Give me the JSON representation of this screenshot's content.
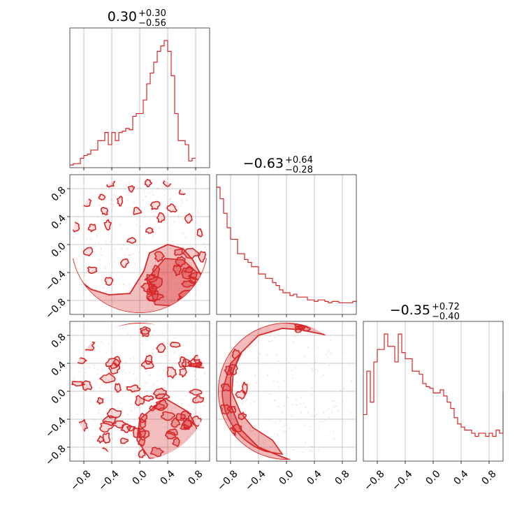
{
  "chart_data": {
    "type": "corner",
    "color": "#d62728",
    "parameters": 3,
    "axis_range": [
      -1.0,
      1.0
    ],
    "ticks": [
      -0.8,
      -0.4,
      0.0,
      0.4,
      0.8
    ],
    "tick_labels": [
      "−0.8",
      "−0.4",
      "0.0",
      "0.4",
      "0.8"
    ],
    "grid": true,
    "titles": [
      {
        "value": "0.30",
        "upper": "+0.30",
        "lower": "−0.56"
      },
      {
        "value": "−0.63",
        "upper": "+0.64",
        "lower": "−0.28"
      },
      {
        "value": "−0.35",
        "upper": "+0.72",
        "lower": "−0.40"
      }
    ],
    "histograms": [
      {
        "name": "param-1-histogram",
        "x_start": -1.0,
        "bin_width": 0.05,
        "counts": [
          2,
          3,
          3,
          7,
          9,
          10,
          13,
          13,
          20,
          20,
          26,
          17,
          26,
          20,
          26,
          27,
          29,
          28,
          38,
          40,
          40,
          50,
          62,
          70,
          78,
          86,
          90,
          94,
          86,
          68,
          40,
          20,
          20,
          17,
          5,
          7
        ]
      },
      {
        "name": "param-2-histogram",
        "x_start": -1.0,
        "bin_width": 0.05,
        "counts": [
          88,
          80,
          70,
          60,
          52,
          52,
          42,
          42,
          38,
          36,
          33,
          33,
          28,
          28,
          25,
          25,
          22,
          20,
          17,
          15,
          15,
          13,
          14,
          12,
          12,
          12,
          10,
          10,
          9,
          10,
          10,
          9,
          8,
          9,
          9,
          8,
          8,
          8,
          8,
          9,
          10
        ]
      },
      {
        "name": "param-3-histogram",
        "x_start": -1.0,
        "bin_width": 0.05,
        "counts": [
          30,
          58,
          38,
          64,
          72,
          72,
          82,
          74,
          74,
          64,
          82,
          70,
          66,
          66,
          58,
          58,
          56,
          50,
          48,
          47,
          44,
          44,
          46,
          42,
          38,
          34,
          28,
          24,
          22,
          20,
          20,
          18,
          16,
          18,
          18,
          16,
          18,
          16,
          20,
          18,
          44
        ]
      }
    ],
    "pairs": [
      {
        "x_param": 1,
        "y_param": 2,
        "name": "param-1-vs-2"
      },
      {
        "x_param": 1,
        "y_param": 3,
        "name": "param-1-vs-3"
      },
      {
        "x_param": 2,
        "y_param": 3,
        "name": "param-2-vs-3"
      }
    ]
  }
}
